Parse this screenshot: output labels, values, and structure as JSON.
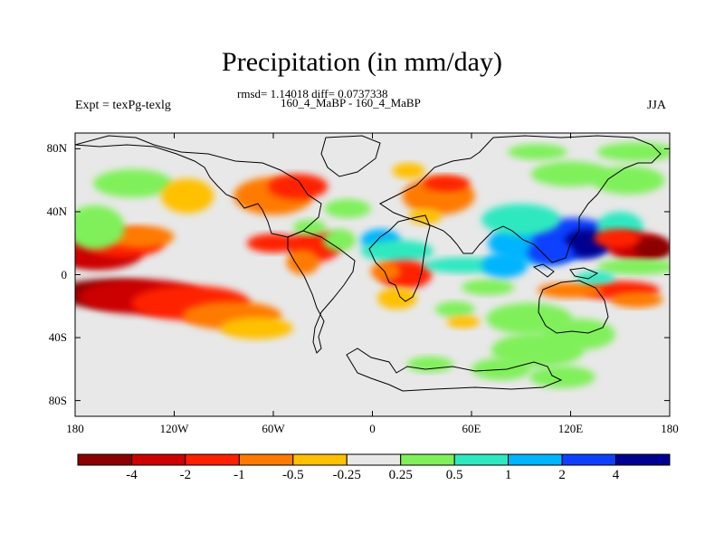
{
  "chart_data": {
    "type": "heatmap",
    "title": "Precipitation (in mm/day)",
    "subtitle_stats": "rmsd= 1.14018 diff= 0.0737338",
    "subtitle_case": "160_4_MaBP - 160_4_MaBP",
    "left_string": "Expt = texPg-texlg",
    "right_string": "JJA",
    "x_ticks": [
      "180",
      "120W",
      "60W",
      "0",
      "60E",
      "120E",
      "180"
    ],
    "x_tick_values": [
      -180,
      -120,
      -60,
      0,
      60,
      120,
      180
    ],
    "y_ticks": [
      "80N",
      "40N",
      "0",
      "40S",
      "80S"
    ],
    "y_tick_values": [
      80,
      40,
      0,
      -40,
      -80
    ],
    "xlim": [
      -180,
      180
    ],
    "ylim": [
      -90,
      90
    ],
    "colorbar": {
      "levels": [
        "-4",
        "-2",
        "-1",
        "-0.5",
        "-0.25",
        "0.25",
        "0.5",
        "1",
        "2",
        "4"
      ],
      "colors": [
        "#8b0000",
        "#cc0000",
        "#ff2000",
        "#ff7a00",
        "#ffc000",
        "#e8e8e8",
        "#7ff05a",
        "#2ee8c0",
        "#00b4ff",
        "#1040ff",
        "#000090"
      ]
    },
    "features": [
      {
        "lon": -172,
        "lat": 15,
        "w": 20,
        "h": 9,
        "v": -5
      },
      {
        "lon": -165,
        "lat": 14,
        "w": 26,
        "h": 11,
        "v": -3
      },
      {
        "lon": -150,
        "lat": 20,
        "w": 24,
        "h": 9,
        "v": -2
      },
      {
        "lon": -140,
        "lat": 24,
        "w": 20,
        "h": 7,
        "v": -1
      },
      {
        "lon": -160,
        "lat": -12,
        "w": 34,
        "h": 9,
        "v": -5
      },
      {
        "lon": -140,
        "lat": -14,
        "w": 38,
        "h": 11,
        "v": -3
      },
      {
        "lon": -110,
        "lat": -18,
        "w": 36,
        "h": 11,
        "v": -1.5
      },
      {
        "lon": -85,
        "lat": -26,
        "w": 30,
        "h": 9,
        "v": -0.7
      },
      {
        "lon": -70,
        "lat": -34,
        "w": 22,
        "h": 7,
        "v": -0.35
      },
      {
        "lon": -168,
        "lat": 30,
        "w": 18,
        "h": 14,
        "v": 0.35
      },
      {
        "lon": -145,
        "lat": 58,
        "w": 24,
        "h": 9,
        "v": 0.35
      },
      {
        "lon": -112,
        "lat": 50,
        "w": 16,
        "h": 11,
        "v": -0.35
      },
      {
        "lon": -60,
        "lat": 50,
        "w": 24,
        "h": 12,
        "v": -0.7
      },
      {
        "lon": -45,
        "lat": 56,
        "w": 18,
        "h": 8,
        "v": -1.5
      },
      {
        "lon": -60,
        "lat": 20,
        "w": 16,
        "h": 6,
        "v": -1.5
      },
      {
        "lon": -35,
        "lat": 18,
        "w": 16,
        "h": 10,
        "v": -1.5
      },
      {
        "lon": -42,
        "lat": 8,
        "w": 10,
        "h": 8,
        "v": -0.7
      },
      {
        "lon": -20,
        "lat": 22,
        "w": 10,
        "h": 7,
        "v": 0.35
      },
      {
        "lon": -38,
        "lat": 30,
        "w": 10,
        "h": 5,
        "v": 0.35
      },
      {
        "lon": -15,
        "lat": 42,
        "w": 14,
        "h": 6,
        "v": 0.35
      },
      {
        "lon": 5,
        "lat": 22,
        "w": 12,
        "h": 7,
        "v": 1.5
      },
      {
        "lon": 15,
        "lat": 15,
        "w": 22,
        "h": 7,
        "v": 0.7
      },
      {
        "lon": 20,
        "lat": 0,
        "w": 16,
        "h": 9,
        "v": -1.5
      },
      {
        "lon": 8,
        "lat": 2,
        "w": 9,
        "h": 6,
        "v": -0.7
      },
      {
        "lon": 15,
        "lat": -15,
        "w": 12,
        "h": 7,
        "v": -0.35
      },
      {
        "lon": 40,
        "lat": 50,
        "w": 22,
        "h": 12,
        "v": -0.7
      },
      {
        "lon": 45,
        "lat": 58,
        "w": 14,
        "h": 5,
        "v": -1.5
      },
      {
        "lon": 32,
        "lat": 37,
        "w": 10,
        "h": 5,
        "v": -0.35
      },
      {
        "lon": 22,
        "lat": 66,
        "w": 10,
        "h": 5,
        "v": -0.35
      },
      {
        "lon": 55,
        "lat": 6,
        "w": 24,
        "h": 5,
        "v": 0.7
      },
      {
        "lon": 70,
        "lat": -8,
        "w": 16,
        "h": 5,
        "v": 0.35
      },
      {
        "lon": 50,
        "lat": -22,
        "w": 12,
        "h": 5,
        "v": 0.35
      },
      {
        "lon": 55,
        "lat": -30,
        "w": 10,
        "h": 4,
        "v": -0.35
      },
      {
        "lon": 95,
        "lat": -28,
        "w": 26,
        "h": 10,
        "v": 0.35
      },
      {
        "lon": 125,
        "lat": -38,
        "w": 22,
        "h": 10,
        "v": 0.35
      },
      {
        "lon": 100,
        "lat": -48,
        "w": 28,
        "h": 11,
        "v": 0.35
      },
      {
        "lon": 78,
        "lat": -60,
        "w": 18,
        "h": 7,
        "v": 0.35
      },
      {
        "lon": 115,
        "lat": -65,
        "w": 20,
        "h": 7,
        "v": 0.35
      },
      {
        "lon": 35,
        "lat": -57,
        "w": 14,
        "h": 5,
        "v": 0.35
      },
      {
        "lon": 100,
        "lat": 20,
        "w": 30,
        "h": 13,
        "v": 1.5
      },
      {
        "lon": 122,
        "lat": 23,
        "w": 25,
        "h": 13,
        "v": 3
      },
      {
        "lon": 130,
        "lat": 20,
        "w": 14,
        "h": 9,
        "v": 5
      },
      {
        "lon": 108,
        "lat": 14,
        "w": 14,
        "h": 8,
        "v": 3
      },
      {
        "lon": 90,
        "lat": 35,
        "w": 24,
        "h": 10,
        "v": 0.7
      },
      {
        "lon": 80,
        "lat": 6,
        "w": 14,
        "h": 8,
        "v": 1.5
      },
      {
        "lon": 150,
        "lat": 30,
        "w": 14,
        "h": 10,
        "v": 0.7
      },
      {
        "lon": 160,
        "lat": 18,
        "w": 18,
        "h": 9,
        "v": -3
      },
      {
        "lon": 170,
        "lat": 17,
        "w": 12,
        "h": 7,
        "v": -5
      },
      {
        "lon": 148,
        "lat": 23,
        "w": 14,
        "h": 6,
        "v": -1.5
      },
      {
        "lon": 150,
        "lat": -10,
        "w": 24,
        "h": 6,
        "v": -1.5
      },
      {
        "lon": 120,
        "lat": -10,
        "w": 20,
        "h": 5,
        "v": -0.7
      },
      {
        "lon": 160,
        "lat": -16,
        "w": 16,
        "h": 5,
        "v": -0.7
      },
      {
        "lon": 120,
        "lat": 64,
        "w": 24,
        "h": 8,
        "v": 0.35
      },
      {
        "lon": 155,
        "lat": 60,
        "w": 22,
        "h": 9,
        "v": 0.35
      },
      {
        "lon": 160,
        "lat": 78,
        "w": 24,
        "h": 6,
        "v": 0.35
      },
      {
        "lon": 100,
        "lat": 78,
        "w": 18,
        "h": 5,
        "v": 0.35
      },
      {
        "lon": 160,
        "lat": 5,
        "w": 24,
        "h": 5,
        "v": 0.35
      },
      {
        "lon": 135,
        "lat": -2,
        "w": 12,
        "h": 4,
        "v": 0.7
      }
    ]
  }
}
